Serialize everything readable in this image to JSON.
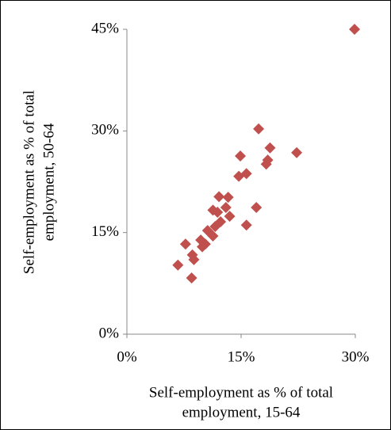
{
  "chart_data": {
    "type": "scatter",
    "x_label": [
      "Self-employment as % of total",
      "employment, 15-64"
    ],
    "y_label": [
      "Self-employment as % of total",
      "employment, 50-64"
    ],
    "color": "#c0504d",
    "x": [
      29.9,
      17.3,
      18.8,
      22.3,
      14.9,
      18.5,
      18.3,
      15.7,
      14.7,
      12.1,
      13.3,
      13.0,
      11.3,
      11.9,
      17.0,
      13.5,
      12.3,
      15.7,
      11.6,
      10.6,
      11.3,
      9.7,
      10.3,
      9.9,
      7.7,
      8.6,
      8.8,
      6.7,
      8.5
    ],
    "values": [
      45.0,
      30.3,
      27.5,
      26.8,
      26.3,
      25.7,
      25.1,
      23.7,
      23.3,
      20.3,
      20.2,
      18.7,
      18.3,
      18.0,
      18.7,
      17.4,
      16.6,
      16.1,
      15.9,
      15.3,
      14.5,
      13.9,
      13.3,
      12.9,
      13.3,
      11.7,
      11.0,
      10.2,
      8.3
    ],
    "xlim": [
      0,
      30
    ],
    "ylim": [
      0,
      45
    ],
    "xticks": [
      {
        "value": 0,
        "label": "0%"
      },
      {
        "value": 15,
        "label": "15%"
      },
      {
        "value": 30,
        "label": "30%"
      }
    ],
    "yticks": [
      {
        "value": 0,
        "label": "0%"
      },
      {
        "value": 15,
        "label": "15%"
      },
      {
        "value": 30,
        "label": "30%"
      },
      {
        "value": 45,
        "label": "45%"
      }
    ],
    "grid": false
  }
}
